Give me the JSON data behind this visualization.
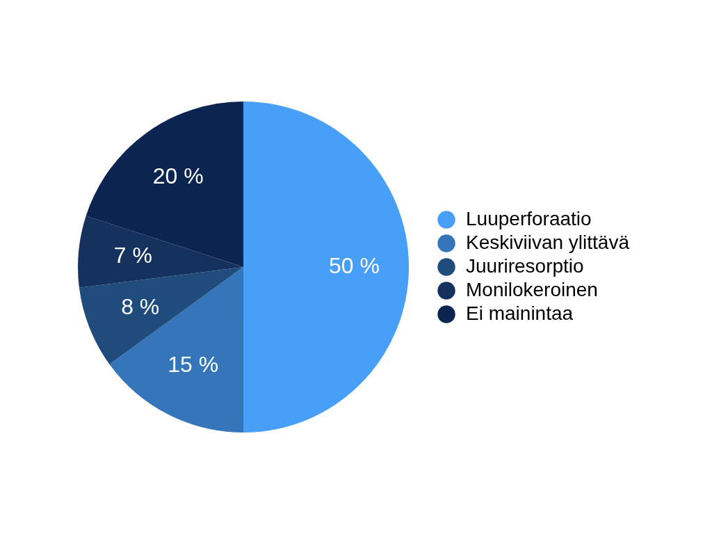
{
  "chart_data": {
    "type": "pie",
    "categories": [
      "Luuperforaatio",
      "Keskiviivan ylittävä",
      "Juuriresorptio",
      "Monilokeroinen",
      "Ei mainintaa"
    ],
    "values": [
      50,
      15,
      8,
      7,
      20
    ],
    "colors": [
      "#479ff8",
      "#3575b9",
      "#1f4b7d",
      "#15325e",
      "#0c2550"
    ],
    "value_labels": [
      "50 %",
      "15 %",
      "8 %",
      "7 %",
      "20 %"
    ],
    "legend": "right"
  }
}
